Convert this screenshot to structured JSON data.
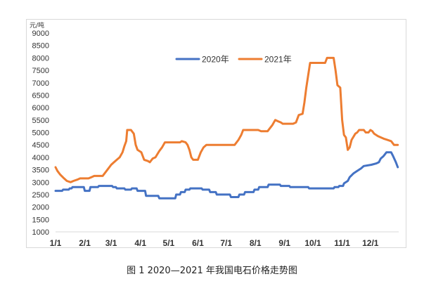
{
  "caption": "图 1  2020—2021 年我国电石价格走势图",
  "chart_data": {
    "type": "line",
    "unit_label": "元/吨",
    "ylim": [
      1000,
      9000
    ],
    "y_ticks": [
      1000,
      1500,
      2000,
      2500,
      3000,
      3500,
      4000,
      4500,
      5000,
      5500,
      6000,
      6500,
      7000,
      7500,
      8000,
      8500,
      9000
    ],
    "x_ticks": [
      {
        "label": "1/1",
        "day": 0
      },
      {
        "label": "2/1",
        "day": 31
      },
      {
        "label": "3/1",
        "day": 59
      },
      {
        "label": "4/1",
        "day": 90
      },
      {
        "label": "5/1",
        "day": 120
      },
      {
        "label": "6/1",
        "day": 151
      },
      {
        "label": "7/1",
        "day": 181
      },
      {
        "label": "8/1",
        "day": 212
      },
      {
        "label": "9/1",
        "day": 243
      },
      {
        "label": "10/1",
        "day": 273
      },
      {
        "label": "11/1",
        "day": 304
      },
      {
        "label": "12/1",
        "day": 334
      }
    ],
    "x_range_days": [
      0,
      364
    ],
    "grid": false,
    "legend_position": "top-center",
    "series": [
      {
        "name": "2020年",
        "color": "#4472c4",
        "points": [
          [
            0,
            2650
          ],
          [
            7,
            2650
          ],
          [
            8,
            2700
          ],
          [
            14,
            2700
          ],
          [
            15,
            2750
          ],
          [
            17,
            2750
          ],
          [
            18,
            2800
          ],
          [
            30,
            2800
          ],
          [
            31,
            2650
          ],
          [
            36,
            2650
          ],
          [
            37,
            2800
          ],
          [
            45,
            2800
          ],
          [
            46,
            2850
          ],
          [
            60,
            2850
          ],
          [
            61,
            2800
          ],
          [
            64,
            2800
          ],
          [
            65,
            2750
          ],
          [
            73,
            2750
          ],
          [
            74,
            2700
          ],
          [
            80,
            2700
          ],
          [
            81,
            2750
          ],
          [
            86,
            2750
          ],
          [
            87,
            2650
          ],
          [
            95,
            2650
          ],
          [
            96,
            2450
          ],
          [
            109,
            2450
          ],
          [
            110,
            2350
          ],
          [
            127,
            2350
          ],
          [
            128,
            2500
          ],
          [
            132,
            2500
          ],
          [
            133,
            2600
          ],
          [
            137,
            2600
          ],
          [
            138,
            2700
          ],
          [
            142,
            2700
          ],
          [
            143,
            2750
          ],
          [
            155,
            2750
          ],
          [
            156,
            2700
          ],
          [
            163,
            2700
          ],
          [
            164,
            2600
          ],
          [
            170,
            2600
          ],
          [
            171,
            2500
          ],
          [
            185,
            2500
          ],
          [
            186,
            2400
          ],
          [
            194,
            2400
          ],
          [
            195,
            2500
          ],
          [
            200,
            2500
          ],
          [
            201,
            2600
          ],
          [
            210,
            2600
          ],
          [
            211,
            2700
          ],
          [
            215,
            2700
          ],
          [
            216,
            2800
          ],
          [
            225,
            2800
          ],
          [
            226,
            2900
          ],
          [
            238,
            2900
          ],
          [
            239,
            2850
          ],
          [
            248,
            2850
          ],
          [
            249,
            2800
          ],
          [
            268,
            2800
          ],
          [
            269,
            2750
          ],
          [
            295,
            2750
          ],
          [
            296,
            2800
          ],
          [
            300,
            2800
          ],
          [
            301,
            2850
          ],
          [
            305,
            2850
          ],
          [
            306,
            2950
          ],
          [
            310,
            3050
          ],
          [
            312,
            3200
          ],
          [
            316,
            3350
          ],
          [
            320,
            3450
          ],
          [
            324,
            3550
          ],
          [
            327,
            3650
          ],
          [
            335,
            3700
          ],
          [
            340,
            3750
          ],
          [
            343,
            3800
          ],
          [
            345,
            3950
          ],
          [
            348,
            4050
          ],
          [
            351,
            4200
          ],
          [
            356,
            4200
          ],
          [
            358,
            4050
          ],
          [
            361,
            3800
          ],
          [
            363,
            3600
          ]
        ]
      },
      {
        "name": "2021年",
        "color": "#ed7d31",
        "points": [
          [
            0,
            3600
          ],
          [
            2,
            3450
          ],
          [
            5,
            3300
          ],
          [
            9,
            3150
          ],
          [
            12,
            3050
          ],
          [
            16,
            3000
          ],
          [
            19,
            3050
          ],
          [
            23,
            3100
          ],
          [
            26,
            3150
          ],
          [
            35,
            3150
          ],
          [
            38,
            3200
          ],
          [
            41,
            3250
          ],
          [
            50,
            3250
          ],
          [
            53,
            3400
          ],
          [
            56,
            3550
          ],
          [
            59,
            3700
          ],
          [
            62,
            3800
          ],
          [
            65,
            3900
          ],
          [
            68,
            4000
          ],
          [
            71,
            4200
          ],
          [
            73,
            4450
          ],
          [
            75,
            4650
          ],
          [
            76,
            5100
          ],
          [
            80,
            5100
          ],
          [
            83,
            4950
          ],
          [
            85,
            4500
          ],
          [
            87,
            4300
          ],
          [
            91,
            4200
          ],
          [
            94,
            3900
          ],
          [
            98,
            3850
          ],
          [
            100,
            3800
          ],
          [
            103,
            3950
          ],
          [
            106,
            4000
          ],
          [
            110,
            4250
          ],
          [
            113,
            4400
          ],
          [
            116,
            4600
          ],
          [
            132,
            4600
          ],
          [
            134,
            4650
          ],
          [
            138,
            4600
          ],
          [
            140,
            4500
          ],
          [
            142,
            4300
          ],
          [
            144,
            4000
          ],
          [
            146,
            3900
          ],
          [
            151,
            3900
          ],
          [
            154,
            4200
          ],
          [
            157,
            4400
          ],
          [
            160,
            4500
          ],
          [
            190,
            4500
          ],
          [
            194,
            4700
          ],
          [
            197,
            4900
          ],
          [
            199,
            5100
          ],
          [
            215,
            5100
          ],
          [
            218,
            5050
          ],
          [
            225,
            5050
          ],
          [
            227,
            5150
          ],
          [
            230,
            5300
          ],
          [
            233,
            5500
          ],
          [
            236,
            5450
          ],
          [
            239,
            5400
          ],
          [
            241,
            5350
          ],
          [
            252,
            5350
          ],
          [
            255,
            5400
          ],
          [
            258,
            5700
          ],
          [
            262,
            5750
          ],
          [
            264,
            6200
          ],
          [
            266,
            6800
          ],
          [
            268,
            7300
          ],
          [
            270,
            7800
          ],
          [
            286,
            7800
          ],
          [
            288,
            8000
          ],
          [
            295,
            8000
          ],
          [
            297,
            7500
          ],
          [
            299,
            6900
          ],
          [
            302,
            6800
          ],
          [
            304,
            5500
          ],
          [
            306,
            4900
          ],
          [
            308,
            4800
          ],
          [
            310,
            4300
          ],
          [
            312,
            4400
          ],
          [
            314,
            4700
          ],
          [
            318,
            4950
          ],
          [
            320,
            5000
          ],
          [
            322,
            5100
          ],
          [
            327,
            5100
          ],
          [
            329,
            5000
          ],
          [
            332,
            5000
          ],
          [
            334,
            5100
          ],
          [
            336,
            5050
          ],
          [
            338,
            4950
          ],
          [
            342,
            4850
          ],
          [
            348,
            4750
          ],
          [
            352,
            4700
          ],
          [
            356,
            4650
          ],
          [
            359,
            4500
          ],
          [
            363,
            4500
          ]
        ]
      }
    ]
  }
}
